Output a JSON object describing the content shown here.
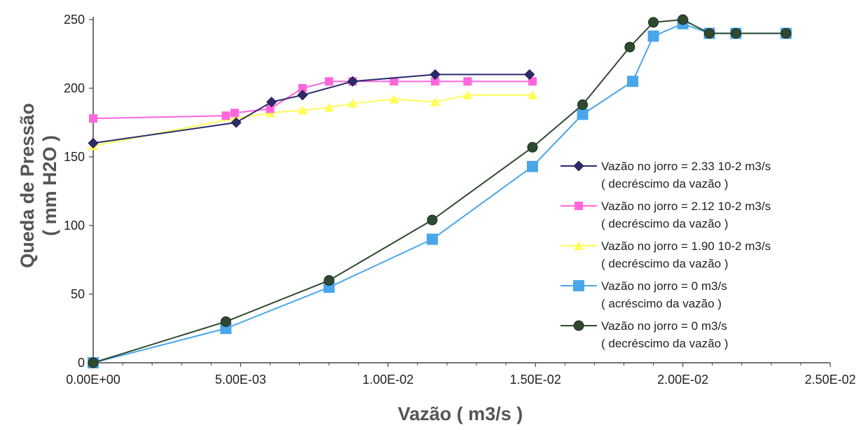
{
  "chart_data": {
    "type": "line",
    "xlabel": "Vazão  ( m3/s )",
    "ylabel_line1": "Queda de Pressão",
    "ylabel_line2": "( mm H2O )",
    "xlim": [
      0,
      0.025
    ],
    "ylim": [
      0,
      250
    ],
    "x_ticks": [
      {
        "value": 0,
        "label": "0.00E+00"
      },
      {
        "value": 0.005,
        "label": "5.00E-03"
      },
      {
        "value": 0.01,
        "label": "1.00E-02"
      },
      {
        "value": 0.015,
        "label": "1.50E-02"
      },
      {
        "value": 0.02,
        "label": "2.00E-02"
      },
      {
        "value": 0.025,
        "label": "2.50E-02"
      }
    ],
    "y_ticks": [
      {
        "value": 0,
        "label": "0"
      },
      {
        "value": 50,
        "label": "50"
      },
      {
        "value": 100,
        "label": "100"
      },
      {
        "value": 150,
        "label": "150"
      },
      {
        "value": 200,
        "label": "200"
      },
      {
        "value": 250,
        "label": "250"
      }
    ],
    "grid": false,
    "legend_position": "right",
    "series": [
      {
        "name": "Vazão no jorro = 2.33 10-2 m3/s",
        "name_line2": "( decréscimo da vazão )",
        "marker": "diamond",
        "color": "#2b2b6e",
        "x": [
          0.0,
          0.00485,
          0.00605,
          0.0071,
          0.0088,
          0.0116,
          0.0148
        ],
        "y": [
          160,
          175,
          190,
          195,
          205,
          210,
          210
        ]
      },
      {
        "name": "Vazão no jorro = 2.12 10-2 m3/s",
        "name_line2": "( decréscimo da vazão )",
        "marker": "square",
        "color": "#ff66dd",
        "x": [
          0.0,
          0.0045,
          0.0048,
          0.006,
          0.0071,
          0.008,
          0.0088,
          0.0102,
          0.0116,
          0.0127,
          0.0149
        ],
        "y": [
          178,
          180,
          182,
          185,
          200,
          205,
          205,
          205,
          205,
          205,
          205
        ]
      },
      {
        "name": "Vazão no jorro = 1.90 10-2 m3/s",
        "name_line2": "( decréscimo da vazão )",
        "marker": "triangle",
        "color": "#ffff55",
        "x": [
          0.0,
          0.0048,
          0.006,
          0.0071,
          0.008,
          0.0088,
          0.0102,
          0.0116,
          0.0127,
          0.0149
        ],
        "y": [
          158,
          178,
          182,
          184,
          186,
          189,
          192,
          190,
          195,
          195
        ]
      },
      {
        "name": "Vazão no jorro = 0 m3/s",
        "name_line2": "( acréscimo da vazão )",
        "marker": "square-large",
        "color": "#4aa6ea",
        "x": [
          0.0,
          0.0045,
          0.008,
          0.0115,
          0.0149,
          0.0166,
          0.0183,
          0.019,
          0.02,
          0.0209,
          0.0218,
          0.0235
        ],
        "y": [
          0,
          25,
          55,
          90,
          143,
          181,
          205,
          238,
          247,
          240,
          240,
          240
        ]
      },
      {
        "name": "Vazão no jorro = 0 m3/s",
        "name_line2": "( decréscimo da vazão )",
        "marker": "circle",
        "color": "#2f4a2f",
        "x": [
          0.0,
          0.0045,
          0.008,
          0.0115,
          0.0149,
          0.0166,
          0.0182,
          0.019,
          0.02,
          0.0209,
          0.0218,
          0.0235
        ],
        "y": [
          0,
          30,
          60,
          104,
          157,
          188,
          230,
          248,
          250,
          240,
          240,
          240
        ]
      }
    ]
  }
}
